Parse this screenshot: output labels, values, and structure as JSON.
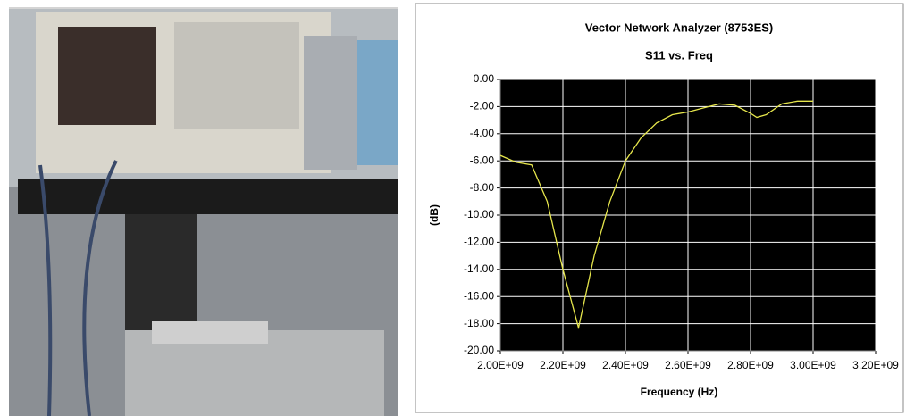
{
  "chart_data": {
    "type": "line",
    "title": "Vector Network Analyzer (8753ES)",
    "subtitle": "S11 vs. Freq",
    "x_label": "Frequency (Hz)",
    "y_label": "(dB)",
    "x": [
      2000000000,
      2050000000,
      2100000000,
      2150000000,
      2200000000,
      2250000000,
      2300000000,
      2350000000,
      2400000000,
      2450000000,
      2500000000,
      2550000000,
      2600000000,
      2650000000,
      2700000000,
      2750000000,
      2800000000,
      2820000000,
      2850000000,
      2900000000,
      2950000000,
      3000000000
    ],
    "series": [
      {
        "name": "S11",
        "color": "#e6e64c",
        "values": [
          -5.6,
          -6.1,
          -6.3,
          -9,
          -14,
          -18.3,
          -13,
          -9,
          -6,
          -4.3,
          -3.2,
          -2.6,
          -2.4,
          -2.1,
          -1.8,
          -1.9,
          -2.5,
          -2.8,
          -2.6,
          -1.8,
          -1.6,
          -1.6
        ]
      }
    ],
    "xlim": [
      2000000000,
      3200000000
    ],
    "xticks": [
      {
        "value": 2000000000,
        "label": "2.00E+09"
      },
      {
        "value": 2200000000,
        "label": "2.20E+09"
      },
      {
        "value": 2400000000,
        "label": "2.40E+09"
      },
      {
        "value": 2600000000,
        "label": "2.60E+09"
      },
      {
        "value": 2800000000,
        "label": "2.80E+09"
      },
      {
        "value": 3000000000,
        "label": "3.00E+09"
      },
      {
        "value": 3200000000,
        "label": "3.20E+09"
      }
    ],
    "ylim": [
      -20,
      0
    ],
    "yticks": [
      {
        "value": 0,
        "label": "0.00"
      },
      {
        "value": -2,
        "label": "-2.00"
      },
      {
        "value": -4,
        "label": "-4.00"
      },
      {
        "value": -6,
        "label": "-6.00"
      },
      {
        "value": -8,
        "label": "-8.00"
      },
      {
        "value": -10,
        "label": "-10.00"
      },
      {
        "value": -12,
        "label": "-12.00"
      },
      {
        "value": -14,
        "label": "-14.00"
      },
      {
        "value": -16,
        "label": "-16.00"
      },
      {
        "value": -18,
        "label": "-18.00"
      },
      {
        "value": -20,
        "label": "-20.00"
      }
    ],
    "grid": true,
    "plot_background": "#000000",
    "grid_color": "#ffffff"
  }
}
